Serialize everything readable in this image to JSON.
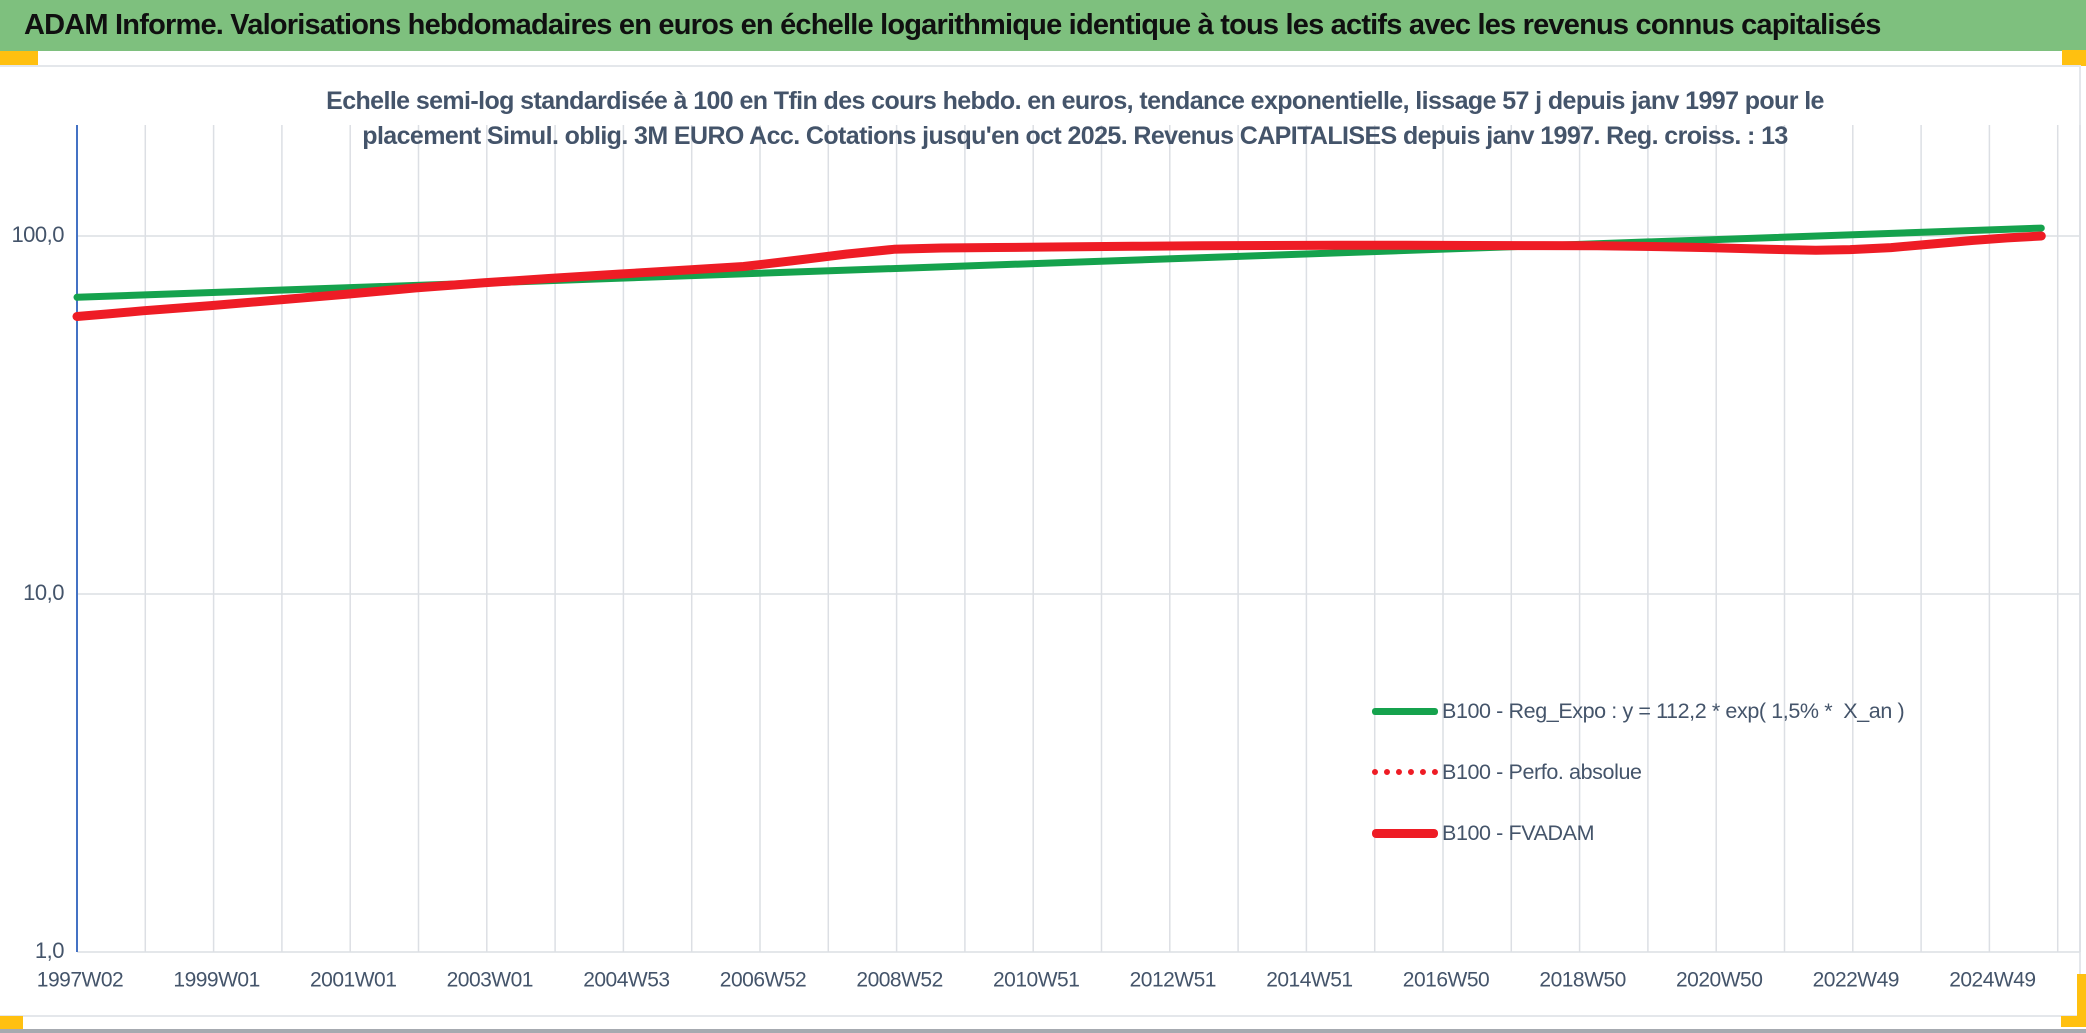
{
  "window": {
    "title": "ADAM Informe. Valorisations hebdomadaires en euros en échelle logarithmique identique à tous les actifs avec les revenus connus capitalisés"
  },
  "accents": {
    "header_bg": "#7EC07E",
    "corner_marker": "#FFC010",
    "axis_blue": "#4472C4",
    "gridline": "#DCDFE4",
    "label_color": "#44546A",
    "green_line": "#15A24D",
    "red_line": "#EE1C25"
  },
  "chart_data": {
    "type": "line",
    "title": "Echelle semi-log standardisée à 100 en Tfin des cours hebdo. en euros, tendance exponentielle, lissage 57 j depuis janv 1997 pour le placement Simul. oblig. 3M EURO Acc. Cotations jusqu'en oct 2025. Revenus CAPITALISES depuis janv 1997. Reg. croiss. : 13",
    "title_lines": [
      "Echelle semi-log standardisée à 100 en Tfin des cours hebdo. en euros, tendance exponentielle, lissage 57 j depuis janv 1997 pour le",
      "placement Simul. oblig. 3M EURO Acc. Cotations jusqu'en oct 2025. Revenus CAPITALISES depuis janv 1997. Reg. croiss. : 13"
    ],
    "x_axis": {
      "scale": "linear-time",
      "start_year": 1997.04,
      "tick_interval_years": 2,
      "gridline_interval_years": 1,
      "tick_labels": [
        "1997W02",
        "1999W01",
        "2001W01",
        "2003W01",
        "2004W53",
        "2006W52",
        "2008W52",
        "2010W51",
        "2012W51",
        "2014W51",
        "2016W50",
        "2018W50",
        "2020W50",
        "2022W49",
        "2024W49"
      ]
    },
    "y_axis": {
      "scale": "log",
      "tick_labels": [
        "100,0",
        "10,0",
        "1,0"
      ],
      "tick_values": [
        100,
        10,
        1
      ],
      "range": [
        1,
        204
      ]
    },
    "legend": [
      {
        "label": "B100 - Reg_Expo : y = 112,2 * exp( 1,5% *  X_an )",
        "color": "#15A24D",
        "style": "solid"
      },
      {
        "label": "B100 - Perfo. absolue",
        "color": "#EE1C25",
        "style": "dotted"
      },
      {
        "label": "B100 - FVADAM",
        "color": "#EE1C25",
        "style": "solid"
      }
    ],
    "series": [
      {
        "name": "B100 - Reg_Expo",
        "color": "#15A24D",
        "style": "solid",
        "width": 7,
        "points": [
          [
            1997.04,
            67.4
          ],
          [
            2025.8,
            105.2
          ]
        ]
      },
      {
        "name": "B100 - Perfo. absolue",
        "color": "#EE1C25",
        "style": "dotted",
        "width": 5,
        "points": [
          [
            1997.04,
            59.6
          ],
          [
            1997.5,
            60.6
          ],
          [
            1998,
            61.8
          ],
          [
            1999,
            63.9
          ],
          [
            2000,
            66.3
          ],
          [
            2001,
            68.8
          ],
          [
            2002,
            71.6
          ],
          [
            2003,
            74.0
          ],
          [
            2004,
            76.2
          ],
          [
            2005,
            78.3
          ],
          [
            2006,
            80.4
          ],
          [
            2006.8,
            82.2
          ],
          [
            2007.5,
            85.2
          ],
          [
            2008.3,
            89.0
          ],
          [
            2009,
            91.8
          ],
          [
            2009.7,
            92.6
          ],
          [
            2010.5,
            92.9
          ],
          [
            2011.5,
            93.2
          ],
          [
            2012.5,
            93.6
          ],
          [
            2013.5,
            93.9
          ],
          [
            2014.5,
            94.1
          ],
          [
            2015.5,
            94.2
          ],
          [
            2016.5,
            94.2
          ],
          [
            2017.5,
            94.1
          ],
          [
            2018.5,
            94.0
          ],
          [
            2019.3,
            93.9
          ],
          [
            2020.2,
            93.4
          ],
          [
            2021,
            92.7
          ],
          [
            2021.8,
            91.8
          ],
          [
            2022.5,
            91.2
          ],
          [
            2023,
            91.6
          ],
          [
            2023.6,
            92.8
          ],
          [
            2024.2,
            95.0
          ],
          [
            2024.8,
            97.2
          ],
          [
            2025.3,
            98.8
          ],
          [
            2025.8,
            100.0
          ]
        ]
      },
      {
        "name": "B100 - FVADAM",
        "color": "#EE1C25",
        "style": "solid",
        "width": 9,
        "points": [
          [
            1997.04,
            59.6
          ],
          [
            1997.5,
            60.6
          ],
          [
            1998,
            61.8
          ],
          [
            1999,
            63.9
          ],
          [
            2000,
            66.3
          ],
          [
            2001,
            68.8
          ],
          [
            2002,
            71.6
          ],
          [
            2003,
            74.0
          ],
          [
            2004,
            76.2
          ],
          [
            2005,
            78.3
          ],
          [
            2006,
            80.4
          ],
          [
            2006.8,
            82.2
          ],
          [
            2007.5,
            85.2
          ],
          [
            2008.3,
            89.0
          ],
          [
            2009,
            91.8
          ],
          [
            2009.7,
            92.6
          ],
          [
            2010.5,
            92.9
          ],
          [
            2011.5,
            93.2
          ],
          [
            2012.5,
            93.6
          ],
          [
            2013.5,
            93.9
          ],
          [
            2014.5,
            94.1
          ],
          [
            2015.5,
            94.2
          ],
          [
            2016.5,
            94.2
          ],
          [
            2017.5,
            94.1
          ],
          [
            2018.5,
            94.0
          ],
          [
            2019.3,
            93.9
          ],
          [
            2020.2,
            93.4
          ],
          [
            2021,
            92.7
          ],
          [
            2021.8,
            91.8
          ],
          [
            2022.5,
            91.2
          ],
          [
            2023,
            91.6
          ],
          [
            2023.6,
            92.8
          ],
          [
            2024.2,
            95.0
          ],
          [
            2024.8,
            97.2
          ],
          [
            2025.3,
            98.8
          ],
          [
            2025.8,
            100.0
          ]
        ]
      }
    ]
  }
}
